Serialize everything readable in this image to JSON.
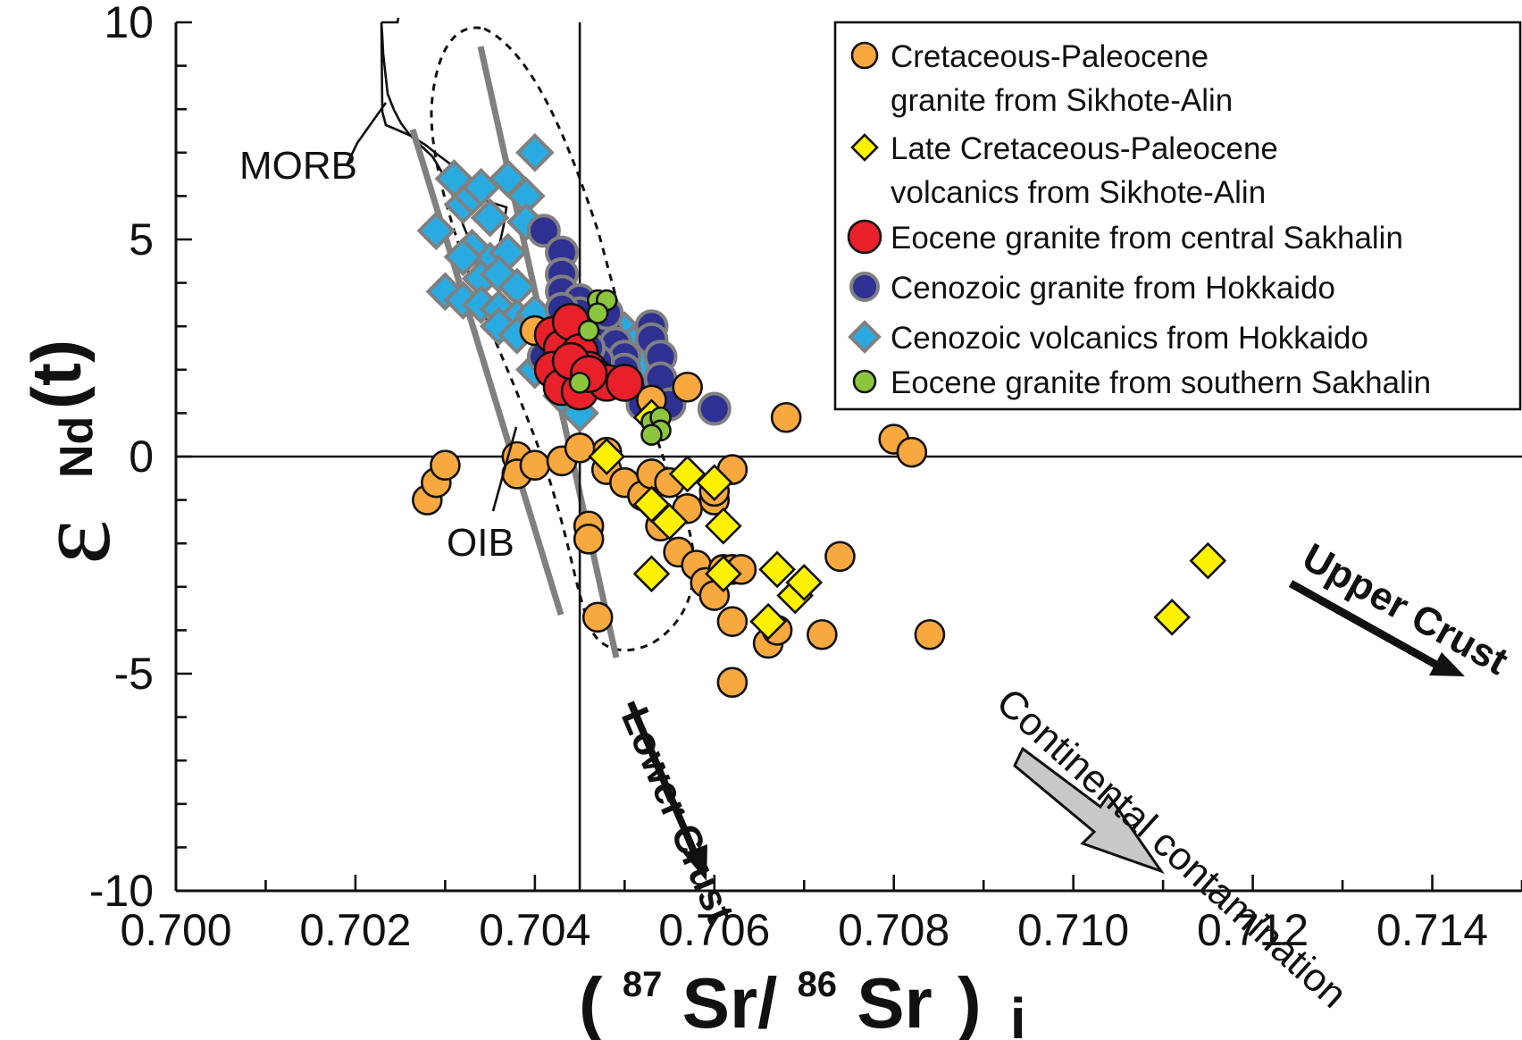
{
  "chart_data": {
    "type": "scatter",
    "title": "",
    "xlabel": {
      "open": "(",
      "sup1": "87",
      "mid": "Sr/",
      "sup2": "86",
      "end": "Sr",
      "close": ")",
      "sub": "i"
    },
    "ylabel": {
      "symbol": "ε",
      "sub": "Nd",
      "suffix": "(t)"
    },
    "xlim": [
      0.7,
      0.715
    ],
    "ylim": [
      -10,
      10
    ],
    "x_ticks": [
      "0.700",
      "0.702",
      "0.704",
      "0.706",
      "0.708",
      "0.710",
      "0.712",
      "0.714"
    ],
    "y_ticks": [
      "10",
      "5",
      "0",
      "-5",
      "-10"
    ],
    "grid": false,
    "legend_position": "top-right",
    "annotations": {
      "morb": "MORB",
      "oib": "OIB",
      "lower_crust": "Lower Crust",
      "upper_crust": "Upper Crust",
      "continental": "Continental contamination"
    },
    "colors": {
      "orange": "#F7A83F",
      "yellow": "#FFF200",
      "red": "#E8202A",
      "navy": "#2E3192",
      "cyan": "#29ABE2",
      "green": "#8CC63F",
      "gray": "#808080"
    },
    "series": [
      {
        "name": "Cretaceous-Paleocene granite from Sikhote-Alin",
        "legend_line2": "granite from Sikhote-Alin",
        "legend_line1": "Cretaceous-Paleocene",
        "marker": "circle",
        "points": [
          [
            0.7043,
            2.3
          ],
          [
            0.7044,
            1.9
          ],
          [
            0.7048,
            0.1
          ],
          [
            0.7038,
            0.0
          ],
          [
            0.7028,
            -1.0
          ],
          [
            0.7029,
            -0.6
          ],
          [
            0.703,
            -0.2
          ],
          [
            0.7038,
            -0.4
          ],
          [
            0.704,
            -0.2
          ],
          [
            0.7043,
            -0.1
          ],
          [
            0.7045,
            0.2
          ],
          [
            0.7048,
            -0.3
          ],
          [
            0.705,
            -0.6
          ],
          [
            0.7052,
            -0.9
          ],
          [
            0.7053,
            -0.4
          ],
          [
            0.7055,
            -0.6
          ],
          [
            0.7057,
            -1.2
          ],
          [
            0.706,
            -1.0
          ],
          [
            0.706,
            -0.8
          ],
          [
            0.7062,
            -0.3
          ],
          [
            0.7054,
            -1.6
          ],
          [
            0.7056,
            -2.2
          ],
          [
            0.7058,
            -2.5
          ],
          [
            0.7059,
            -2.9
          ],
          [
            0.706,
            -3.2
          ],
          [
            0.7061,
            -2.6
          ],
          [
            0.7062,
            -2.6
          ],
          [
            0.7062,
            -3.8
          ],
          [
            0.7063,
            -2.6
          ],
          [
            0.7066,
            -4.3
          ],
          [
            0.7067,
            -4.0
          ],
          [
            0.7072,
            -4.1
          ],
          [
            0.7074,
            -2.3
          ],
          [
            0.7062,
            -5.2
          ],
          [
            0.7046,
            -1.6
          ],
          [
            0.7046,
            -1.9
          ],
          [
            0.7047,
            -3.7
          ],
          [
            0.7053,
            1.3
          ],
          [
            0.7057,
            1.6
          ],
          [
            0.7068,
            0.9
          ],
          [
            0.708,
            0.4
          ],
          [
            0.7082,
            0.1
          ],
          [
            0.7084,
            -4.1
          ],
          [
            0.704,
            2.9
          ]
        ]
      },
      {
        "name": "Late Cretaceous-Paleocene volcanics from Sikhote-Alin",
        "legend_line1": "Late Cretaceous-Paleocene",
        "legend_line2": "volcanics from Sikhote-Alin",
        "marker": "diamond",
        "points": [
          [
            0.7048,
            0.0
          ],
          [
            0.7053,
            -1.1
          ],
          [
            0.7055,
            -1.5
          ],
          [
            0.7057,
            -0.4
          ],
          [
            0.706,
            -0.6
          ],
          [
            0.7061,
            -1.6
          ],
          [
            0.7053,
            -2.7
          ],
          [
            0.7061,
            -2.7
          ],
          [
            0.7067,
            -2.6
          ],
          [
            0.7069,
            -3.2
          ],
          [
            0.707,
            -2.9
          ],
          [
            0.7066,
            -3.8
          ],
          [
            0.7111,
            -3.7
          ],
          [
            0.7115,
            -2.4
          ],
          [
            0.7053,
            0.9
          ]
        ]
      },
      {
        "name": "Eocene granite from central Sakhalin",
        "legend_line1": "Eocene granite from central Sakhalin",
        "marker": "big-circle",
        "points": [
          [
            0.7042,
            2.8
          ],
          [
            0.7043,
            2.5
          ],
          [
            0.7044,
            3.1
          ],
          [
            0.7045,
            2.4
          ],
          [
            0.7046,
            2.0
          ],
          [
            0.7047,
            1.8
          ],
          [
            0.7042,
            2.0
          ],
          [
            0.7043,
            1.6
          ],
          [
            0.7045,
            1.5
          ],
          [
            0.7048,
            1.7
          ],
          [
            0.705,
            1.7
          ],
          [
            0.7044,
            2.2
          ],
          [
            0.7046,
            1.9
          ]
        ]
      },
      {
        "name": "Cenozoic granite from Hokkaido",
        "legend_line1": "Cenozoic granite from Hokkaido",
        "marker": "circle",
        "points": [
          [
            0.7041,
            5.2
          ],
          [
            0.7043,
            4.7
          ],
          [
            0.7043,
            4.2
          ],
          [
            0.7043,
            3.8
          ],
          [
            0.7045,
            3.6
          ],
          [
            0.7045,
            3.3
          ],
          [
            0.7043,
            3.4
          ],
          [
            0.7041,
            2.3
          ],
          [
            0.7042,
            2.0
          ],
          [
            0.7048,
            2.9
          ],
          [
            0.7049,
            2.6
          ],
          [
            0.705,
            2.3
          ],
          [
            0.705,
            2.0
          ],
          [
            0.7051,
            1.6
          ],
          [
            0.7052,
            1.2
          ],
          [
            0.7053,
            3.0
          ],
          [
            0.7053,
            2.7
          ],
          [
            0.7054,
            2.3
          ],
          [
            0.7054,
            1.8
          ],
          [
            0.7055,
            1.2
          ],
          [
            0.706,
            1.1
          ],
          [
            0.7048,
            3.3
          ],
          [
            0.7047,
            2.2
          ],
          [
            0.7046,
            2.5
          ]
        ]
      },
      {
        "name": "Cenozoic volcanics from Hokkaido",
        "legend_line1": "Cenozoic volcanics from Hokkaido",
        "marker": "diamond",
        "points": [
          [
            0.7031,
            6.4
          ],
          [
            0.7032,
            5.8
          ],
          [
            0.7033,
            6.0
          ],
          [
            0.7034,
            6.2
          ],
          [
            0.7037,
            6.4
          ],
          [
            0.704,
            7.0
          ],
          [
            0.7039,
            6.0
          ],
          [
            0.7039,
            5.4
          ],
          [
            0.7035,
            5.5
          ],
          [
            0.7033,
            4.8
          ],
          [
            0.7035,
            4.5
          ],
          [
            0.7037,
            4.7
          ],
          [
            0.7029,
            5.2
          ],
          [
            0.7032,
            4.6
          ],
          [
            0.7034,
            4.1
          ],
          [
            0.7036,
            4.2
          ],
          [
            0.7038,
            3.9
          ],
          [
            0.703,
            3.8
          ],
          [
            0.7032,
            3.6
          ],
          [
            0.7034,
            3.5
          ],
          [
            0.7036,
            3.4
          ],
          [
            0.7038,
            3.2
          ],
          [
            0.704,
            3.3
          ],
          [
            0.7036,
            3.0
          ],
          [
            0.7038,
            2.8
          ],
          [
            0.7041,
            2.7
          ],
          [
            0.7042,
            2.2
          ],
          [
            0.704,
            2.0
          ],
          [
            0.7043,
            1.4
          ],
          [
            0.7045,
            1.0
          ],
          [
            0.705,
            2.9
          ],
          [
            0.7051,
            2.6
          ],
          [
            0.7052,
            2.2
          ],
          [
            0.7049,
            1.9
          ],
          [
            0.7047,
            2.3
          ]
        ]
      },
      {
        "name": "Eocene granite from southern Sakhalin",
        "legend_line1": "Eocene granite from southern Sakhalin",
        "marker": "small-circle",
        "points": [
          [
            0.7047,
            3.6
          ],
          [
            0.7048,
            3.6
          ],
          [
            0.7047,
            3.3
          ],
          [
            0.7046,
            2.9
          ],
          [
            0.7053,
            0.8
          ],
          [
            0.7054,
            0.9
          ],
          [
            0.7054,
            0.6
          ],
          [
            0.7053,
            0.5
          ],
          [
            0.7045,
            1.7
          ]
        ]
      }
    ]
  }
}
